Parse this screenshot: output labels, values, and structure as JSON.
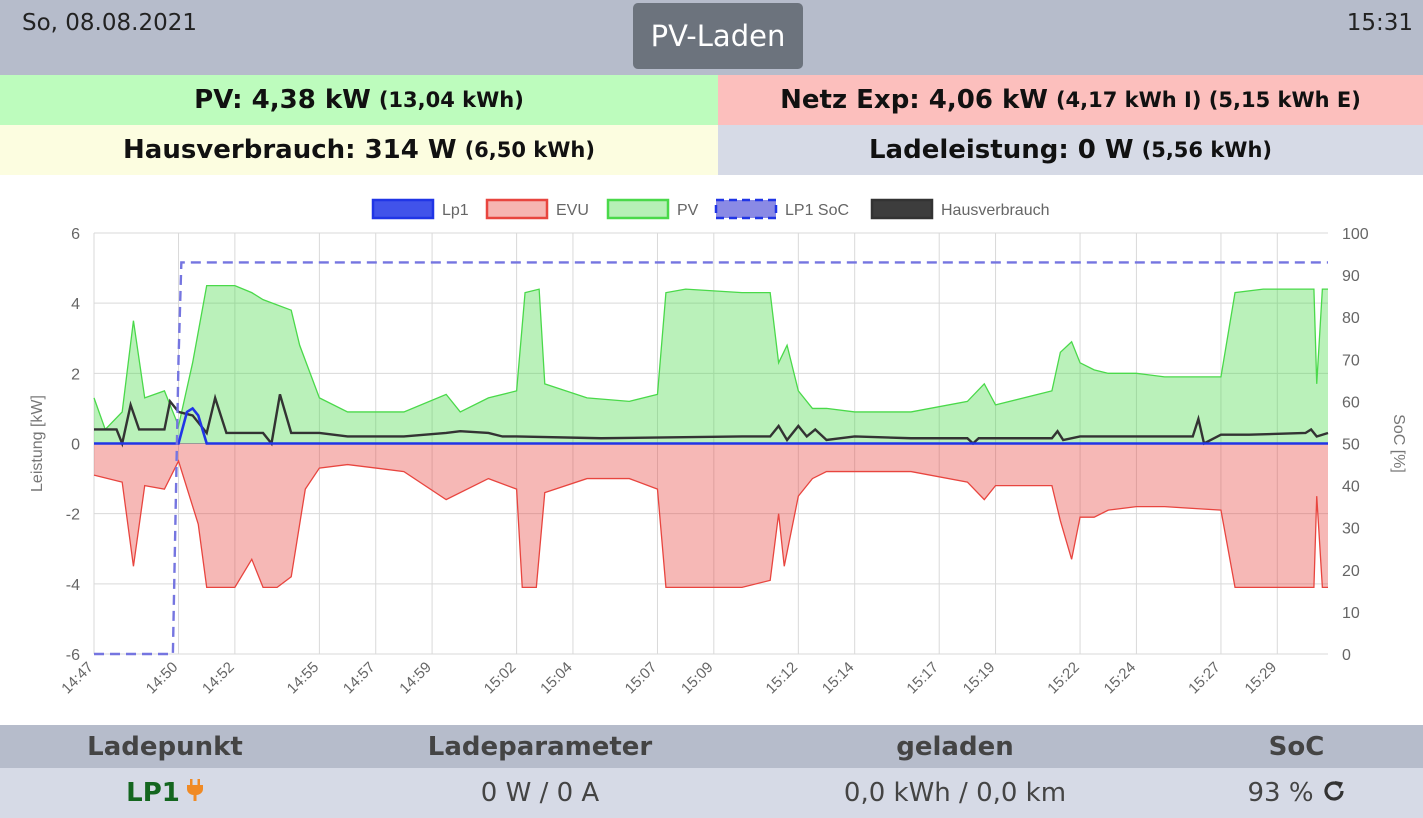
{
  "header": {
    "date": "So, 08.08.2021",
    "time": "15:31",
    "mode": "PV-Laden"
  },
  "tiles": {
    "pv": {
      "label": "PV: 4,38 kW",
      "detail": "(13,04 kWh)"
    },
    "netz": {
      "label": "Netz Exp: 4,06 kW",
      "detail": "(4,17 kWh I) (5,15 kWh E)"
    },
    "haus": {
      "label": "Hausverbrauch: 314 W",
      "detail": "(6,50 kWh)"
    },
    "lade": {
      "label": "Ladeleistung: 0 W",
      "detail": "(5,56 kWh)"
    }
  },
  "table": {
    "headers": [
      "Ladepunkt",
      "Ladeparameter",
      "geladen",
      "SoC"
    ],
    "rows": [
      {
        "name": "LP1",
        "params": "0 W / 0 A",
        "charged": "0,0 kWh / 0,0 km",
        "soc": "93 %"
      }
    ]
  },
  "icons": {
    "plug": "plug-icon",
    "refresh": "refresh-icon"
  },
  "colors": {
    "lp1": "#2035e6",
    "evu": "#e8453f",
    "pv": "#4ad94a",
    "soc": "#7575e0",
    "haus": "#333333"
  },
  "chart_data": {
    "type": "area",
    "ylabel": "Leistung [kW]",
    "y2label": "SoC [%]",
    "ylim": [
      -6,
      6
    ],
    "y2lim": [
      0,
      100
    ],
    "yticks": [
      -6,
      -4,
      -2,
      0,
      2,
      4,
      6
    ],
    "y2ticks": [
      0,
      10,
      20,
      30,
      40,
      50,
      60,
      70,
      80,
      90,
      100
    ],
    "xlim": [
      "14:47",
      "15:30.8"
    ],
    "xticks": [
      "14:47",
      "14:50",
      "14:52",
      "14:55",
      "14:57",
      "14:59",
      "15:02",
      "15:04",
      "15:07",
      "15:09",
      "15:12",
      "15:14",
      "15:17",
      "15:19",
      "15:22",
      "15:24",
      "15:27",
      "15:29"
    ],
    "grid": true,
    "legend": "top",
    "series": [
      {
        "name": "Lp1",
        "axis": "left",
        "x": [
          "14:47",
          "14:50",
          "14:50.3",
          "14:50.5",
          "14:50.7",
          "14:51",
          "15:30.8"
        ],
        "values": [
          0,
          0,
          0.9,
          1.0,
          0.8,
          0,
          0
        ]
      },
      {
        "name": "EVU",
        "axis": "left",
        "x": [
          "14:47",
          "14:48",
          "14:48.4",
          "14:48.8",
          "14:49.5",
          "14:50",
          "14:50.7",
          "14:51",
          "14:52",
          "14:52.6",
          "14:53",
          "14:53.5",
          "14:54",
          "14:54.2",
          "14:54.5",
          "14:55",
          "14:56",
          "14:58",
          "14:59.5",
          "15:01",
          "15:02",
          "15:02.2",
          "15:02.7",
          "15:03",
          "15:04.5",
          "15:06",
          "15:07",
          "15:07.3",
          "15:08",
          "15:08.5",
          "15:10",
          "15:11",
          "15:11.3",
          "15:11.5",
          "15:12",
          "15:12.5",
          "15:13",
          "15:14",
          "15:16",
          "15:18",
          "15:18.6",
          "15:19",
          "15:21",
          "15:21.3",
          "15:21.7",
          "15:22",
          "15:22.5",
          "15:23",
          "15:24",
          "15:25",
          "15:27",
          "15:27.5",
          "15:28.5",
          "15:30.3",
          "15:30.4",
          "15:30.6",
          "15:30.8"
        ],
        "values": [
          -0.9,
          -1.1,
          -3.5,
          -1.2,
          -1.3,
          -0.5,
          -2.3,
          -4.1,
          -4.1,
          -3.3,
          -4.1,
          -4.1,
          -3.8,
          -2.8,
          -1.3,
          -0.7,
          -0.6,
          -0.8,
          -1.6,
          -1.0,
          -1.3,
          -4.1,
          -4.1,
          -1.4,
          -1.0,
          -1.0,
          -1.3,
          -4.1,
          -4.1,
          -4.1,
          -4.1,
          -3.9,
          -2.0,
          -3.5,
          -1.5,
          -1.0,
          -0.8,
          -0.8,
          -0.8,
          -1.1,
          -1.6,
          -1.2,
          -1.2,
          -2.2,
          -3.3,
          -2.1,
          -2.1,
          -1.9,
          -1.8,
          -1.8,
          -1.9,
          -4.1,
          -4.1,
          -4.1,
          -1.5,
          -4.1,
          -4.1
        ]
      },
      {
        "name": "PV",
        "axis": "left",
        "x": [
          "14:47",
          "14:47.4",
          "14:48",
          "14:48.4",
          "14:48.8",
          "14:49.5",
          "14:50",
          "14:50.5",
          "14:51",
          "14:52",
          "14:52.6",
          "14:53",
          "14:54",
          "14:54.3",
          "14:55",
          "14:56",
          "14:58",
          "14:59.5",
          "15:00",
          "15:01",
          "15:02",
          "15:02.3",
          "15:02.8",
          "15:03",
          "15:04.5",
          "15:06",
          "15:07",
          "15:07.3",
          "15:08",
          "15:10",
          "15:11",
          "15:11.3",
          "15:11.6",
          "15:12",
          "15:12.5",
          "15:13",
          "15:14",
          "15:16",
          "15:18",
          "15:18.6",
          "15:19",
          "15:21",
          "15:21.3",
          "15:21.7",
          "15:22",
          "15:22.5",
          "15:23",
          "15:24",
          "15:25",
          "15:27",
          "15:27.5",
          "15:28.5",
          "15:30.3",
          "15:30.4",
          "15:30.6",
          "15:30.8"
        ],
        "values": [
          1.3,
          0.4,
          0.9,
          3.5,
          1.3,
          1.5,
          0.5,
          2.3,
          4.5,
          4.5,
          4.3,
          4.1,
          3.8,
          2.8,
          1.3,
          0.9,
          0.9,
          1.4,
          0.9,
          1.3,
          1.5,
          4.3,
          4.4,
          1.7,
          1.3,
          1.2,
          1.4,
          4.3,
          4.4,
          4.3,
          4.3,
          2.3,
          2.8,
          1.5,
          1.0,
          1.0,
          0.9,
          0.9,
          1.2,
          1.7,
          1.1,
          1.5,
          2.6,
          2.9,
          2.3,
          2.1,
          2.0,
          2.0,
          1.9,
          1.9,
          4.3,
          4.4,
          4.4,
          1.7,
          4.4,
          4.4
        ]
      },
      {
        "name": "LP1 SoC",
        "axis": "right",
        "x": [
          "14:47",
          "14:49.8",
          "14:50",
          "14:50.1",
          "15:30.8"
        ],
        "values": [
          0,
          0,
          70,
          93,
          93
        ]
      },
      {
        "name": "Hausverbrauch",
        "axis": "left",
        "x": [
          "14:47",
          "14:47.8",
          "14:48",
          "14:48.3",
          "14:48.6",
          "14:49.5",
          "14:49.7",
          "14:50",
          "14:50.5",
          "14:51",
          "14:51.3",
          "14:51.7",
          "14:52",
          "14:53",
          "14:53.3",
          "14:53.6",
          "14:54",
          "14:54.3",
          "14:55",
          "14:56",
          "14:58",
          "14:59.5",
          "15:00",
          "15:01",
          "15:01.5",
          "15:02",
          "15:05",
          "15:10",
          "15:11",
          "15:11.3",
          "15:11.6",
          "15:12",
          "15:12.3",
          "15:12.6",
          "15:13",
          "15:14",
          "15:16",
          "15:18",
          "15:18.2",
          "15:18.4",
          "15:20",
          "15:21",
          "15:21.2",
          "15:21.4",
          "15:22",
          "15:25",
          "15:26",
          "15:26.2",
          "15:26.4",
          "15:27",
          "15:28",
          "15:30",
          "15:30.2",
          "15:30.4",
          "15:30.8"
        ],
        "values": [
          0.4,
          0.4,
          0.0,
          1.1,
          0.4,
          0.4,
          1.2,
          0.9,
          0.8,
          0.3,
          1.3,
          0.3,
          0.3,
          0.3,
          0.0,
          1.4,
          0.3,
          0.3,
          0.3,
          0.2,
          0.2,
          0.3,
          0.35,
          0.3,
          0.2,
          0.2,
          0.15,
          0.2,
          0.2,
          0.5,
          0.1,
          0.5,
          0.2,
          0.4,
          0.1,
          0.2,
          0.15,
          0.15,
          0.0,
          0.15,
          0.15,
          0.15,
          0.35,
          0.1,
          0.2,
          0.2,
          0.2,
          0.7,
          0.0,
          0.25,
          0.25,
          0.3,
          0.4,
          0.2,
          0.3
        ]
      }
    ]
  }
}
